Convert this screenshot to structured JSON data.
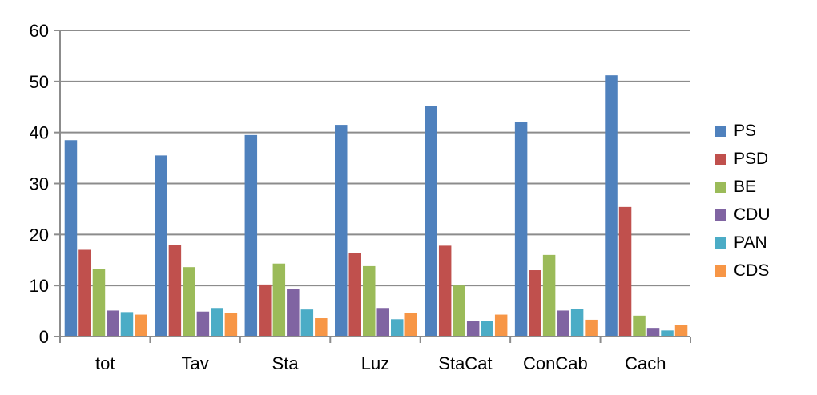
{
  "chart_data": {
    "type": "bar",
    "title": "",
    "xlabel": "",
    "ylabel": "",
    "ylim": [
      0,
      60
    ],
    "y_ticks": [
      0,
      10,
      20,
      30,
      40,
      50,
      60
    ],
    "grid": true,
    "legend_position": "right",
    "categories": [
      "tot",
      "Tav",
      "Sta",
      "Luz",
      "StaCat",
      "ConCab",
      "Cach"
    ],
    "series": [
      {
        "name": "PS",
        "color": "#4F81BD",
        "values": [
          38.5,
          35.5,
          39.5,
          41.5,
          45.2,
          42.0,
          51.2
        ]
      },
      {
        "name": "PSD",
        "color": "#C0504D",
        "values": [
          17.0,
          18.0,
          10.2,
          16.3,
          17.8,
          13.0,
          25.4
        ]
      },
      {
        "name": "BE",
        "color": "#9BBB59",
        "values": [
          13.3,
          13.6,
          14.3,
          13.8,
          10.0,
          16.0,
          4.1
        ]
      },
      {
        "name": "CDU",
        "color": "#8064A2",
        "values": [
          5.1,
          4.9,
          9.3,
          5.6,
          3.1,
          5.1,
          1.7
        ]
      },
      {
        "name": "PAN",
        "color": "#4BACC6",
        "values": [
          4.8,
          5.6,
          5.3,
          3.4,
          3.1,
          5.4,
          1.2
        ]
      },
      {
        "name": "CDS",
        "color": "#F79646",
        "values": [
          4.3,
          4.7,
          3.6,
          4.7,
          4.3,
          3.3,
          2.3
        ]
      }
    ]
  }
}
